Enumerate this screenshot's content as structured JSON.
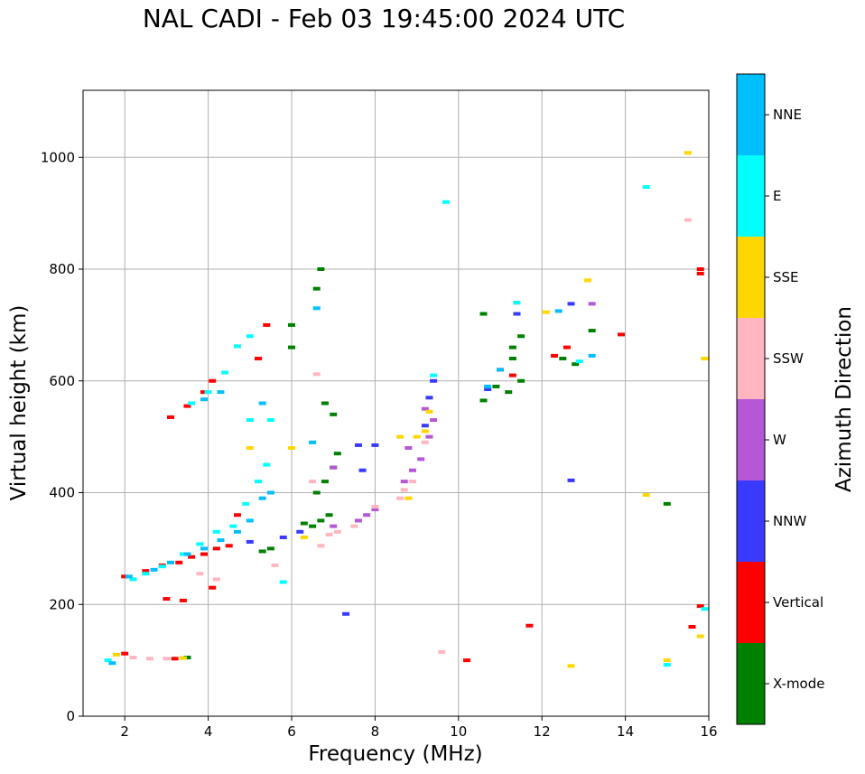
{
  "title": "NAL CADI - Feb 03 19:45:00 2024 UTC",
  "chart_data": {
    "type": "scatter",
    "xlabel": "Frequency (MHz)",
    "ylabel": "Virtual height (km)",
    "xlim": [
      1,
      16
    ],
    "ylim": [
      0,
      1120
    ],
    "xticks": [
      2,
      4,
      6,
      8,
      10,
      12,
      14,
      16
    ],
    "yticks": [
      0,
      200,
      400,
      600,
      800,
      1000
    ],
    "grid": true,
    "colorbar": {
      "label": "Azimuth Direction",
      "categories": [
        {
          "name": "X-mode",
          "color": "#008000"
        },
        {
          "name": "Vertical",
          "color": "#ff0000"
        },
        {
          "name": "NNW",
          "color": "#3a3aff"
        },
        {
          "name": "W",
          "color": "#b657d6"
        },
        {
          "name": "SSW",
          "color": "#ffb6c1"
        },
        {
          "name": "SSE",
          "color": "#ffd700"
        },
        {
          "name": "E",
          "color": "#00ffff"
        },
        {
          "name": "NNE",
          "color": "#00bfff"
        }
      ]
    },
    "series": [
      {
        "name": "X-mode",
        "points": [
          [
            6.3,
            345
          ],
          [
            6.5,
            340
          ],
          [
            6.7,
            350
          ],
          [
            6.9,
            360
          ],
          [
            6.6,
            400
          ],
          [
            6.8,
            420
          ],
          [
            7.0,
            445
          ],
          [
            7.1,
            470
          ],
          [
            7.0,
            540
          ],
          [
            6.8,
            560
          ],
          [
            6.7,
            800
          ],
          [
            6.6,
            765
          ],
          [
            6.0,
            700
          ],
          [
            6.0,
            660
          ],
          [
            5.5,
            300
          ],
          [
            5.3,
            295
          ],
          [
            10.6,
            565
          ],
          [
            10.6,
            720
          ],
          [
            10.9,
            590
          ],
          [
            11.2,
            580
          ],
          [
            11.3,
            640
          ],
          [
            11.3,
            660
          ],
          [
            11.5,
            600
          ],
          [
            11.5,
            680
          ],
          [
            12.5,
            640
          ],
          [
            12.8,
            630
          ],
          [
            13.2,
            690
          ],
          [
            15.0,
            380
          ],
          [
            3.5,
            105
          ]
        ]
      },
      {
        "name": "Vertical",
        "points": [
          [
            2.0,
            250
          ],
          [
            2.5,
            260
          ],
          [
            2.9,
            270
          ],
          [
            3.3,
            275
          ],
          [
            3.6,
            285
          ],
          [
            3.9,
            290
          ],
          [
            4.2,
            300
          ],
          [
            4.5,
            305
          ],
          [
            3.1,
            535
          ],
          [
            3.5,
            555
          ],
          [
            3.9,
            580
          ],
          [
            4.1,
            600
          ],
          [
            4.7,
            360
          ],
          [
            5.2,
            640
          ],
          [
            5.4,
            700
          ],
          [
            10.2,
            100
          ],
          [
            11.0,
            620
          ],
          [
            11.3,
            610
          ],
          [
            11.4,
            740
          ],
          [
            12.3,
            645
          ],
          [
            12.6,
            660
          ],
          [
            13.9,
            683
          ],
          [
            15.8,
            800
          ],
          [
            15.8,
            792
          ],
          [
            15.8,
            197
          ],
          [
            15.6,
            160
          ],
          [
            11.7,
            162
          ],
          [
            3.0,
            210
          ],
          [
            3.4,
            207
          ],
          [
            4.1,
            230
          ],
          [
            2.0,
            112
          ],
          [
            3.2,
            103
          ]
        ]
      },
      {
        "name": "NNW",
        "points": [
          [
            5.0,
            312
          ],
          [
            5.8,
            320
          ],
          [
            6.2,
            330
          ],
          [
            7.6,
            485
          ],
          [
            8.0,
            485
          ],
          [
            9.3,
            570
          ],
          [
            9.4,
            600
          ],
          [
            7.7,
            440
          ],
          [
            12.7,
            738
          ],
          [
            12.7,
            422
          ],
          [
            10.7,
            585
          ],
          [
            7.3,
            183
          ],
          [
            11.4,
            720
          ],
          [
            9.2,
            520
          ]
        ]
      },
      {
        "name": "W",
        "points": [
          [
            7.0,
            340
          ],
          [
            7.6,
            350
          ],
          [
            7.8,
            360
          ],
          [
            8.7,
            420
          ],
          [
            8.9,
            440
          ],
          [
            9.1,
            460
          ],
          [
            9.3,
            500
          ],
          [
            9.4,
            530
          ],
          [
            8.8,
            480
          ],
          [
            9.2,
            550
          ],
          [
            13.2,
            738
          ],
          [
            7.0,
            445
          ],
          [
            8.0,
            370
          ]
        ]
      },
      {
        "name": "SSW",
        "points": [
          [
            6.9,
            325
          ],
          [
            7.1,
            330
          ],
          [
            7.5,
            340
          ],
          [
            8.0,
            375
          ],
          [
            8.6,
            390
          ],
          [
            8.7,
            405
          ],
          [
            8.9,
            420
          ],
          [
            9.2,
            490
          ],
          [
            6.6,
            612
          ],
          [
            6.5,
            420
          ],
          [
            6.7,
            305
          ],
          [
            4.2,
            245
          ],
          [
            2.2,
            105
          ],
          [
            2.6,
            103
          ],
          [
            3.0,
            103
          ],
          [
            15.5,
            888
          ],
          [
            9.6,
            115
          ],
          [
            3.8,
            255
          ],
          [
            5.6,
            270
          ]
        ]
      },
      {
        "name": "SSE",
        "points": [
          [
            8.6,
            500
          ],
          [
            9.0,
            500
          ],
          [
            9.2,
            510
          ],
          [
            9.3,
            545
          ],
          [
            8.8,
            390
          ],
          [
            6.3,
            320
          ],
          [
            6.0,
            480
          ],
          [
            14.5,
            396
          ],
          [
            15.9,
            640
          ],
          [
            15.5,
            1008
          ],
          [
            15.8,
            143
          ],
          [
            15.0,
            100
          ],
          [
            12.7,
            90
          ],
          [
            13.1,
            780
          ],
          [
            12.1,
            723
          ],
          [
            5.0,
            480
          ],
          [
            1.8,
            110
          ],
          [
            3.4,
            104
          ]
        ]
      },
      {
        "name": "E",
        "points": [
          [
            2.2,
            245
          ],
          [
            2.5,
            255
          ],
          [
            2.9,
            268
          ],
          [
            3.4,
            290
          ],
          [
            3.8,
            308
          ],
          [
            4.2,
            330
          ],
          [
            4.6,
            340
          ],
          [
            4.9,
            380
          ],
          [
            5.2,
            420
          ],
          [
            5.4,
            450
          ],
          [
            4.4,
            615
          ],
          [
            3.6,
            560
          ],
          [
            4.0,
            580
          ],
          [
            4.7,
            662
          ],
          [
            5.0,
            680
          ],
          [
            9.4,
            610
          ],
          [
            14.5,
            947
          ],
          [
            15.0,
            92
          ],
          [
            15.9,
            192
          ],
          [
            11.4,
            740
          ],
          [
            12.9,
            635
          ],
          [
            9.7,
            920
          ],
          [
            1.6,
            100
          ],
          [
            5.8,
            240
          ],
          [
            5.5,
            530
          ],
          [
            5.0,
            530
          ]
        ]
      },
      {
        "name": "NNE",
        "points": [
          [
            2.1,
            250
          ],
          [
            2.7,
            262
          ],
          [
            3.1,
            275
          ],
          [
            3.5,
            290
          ],
          [
            3.9,
            300
          ],
          [
            4.3,
            315
          ],
          [
            4.7,
            330
          ],
          [
            5.0,
            350
          ],
          [
            5.3,
            390
          ],
          [
            5.5,
            400
          ],
          [
            6.5,
            490
          ],
          [
            6.6,
            730
          ],
          [
            4.3,
            580
          ],
          [
            3.9,
            567
          ],
          [
            10.7,
            590
          ],
          [
            11.0,
            620
          ],
          [
            12.4,
            725
          ],
          [
            13.2,
            645
          ],
          [
            1.7,
            95
          ],
          [
            5.3,
            560
          ]
        ]
      }
    ]
  }
}
